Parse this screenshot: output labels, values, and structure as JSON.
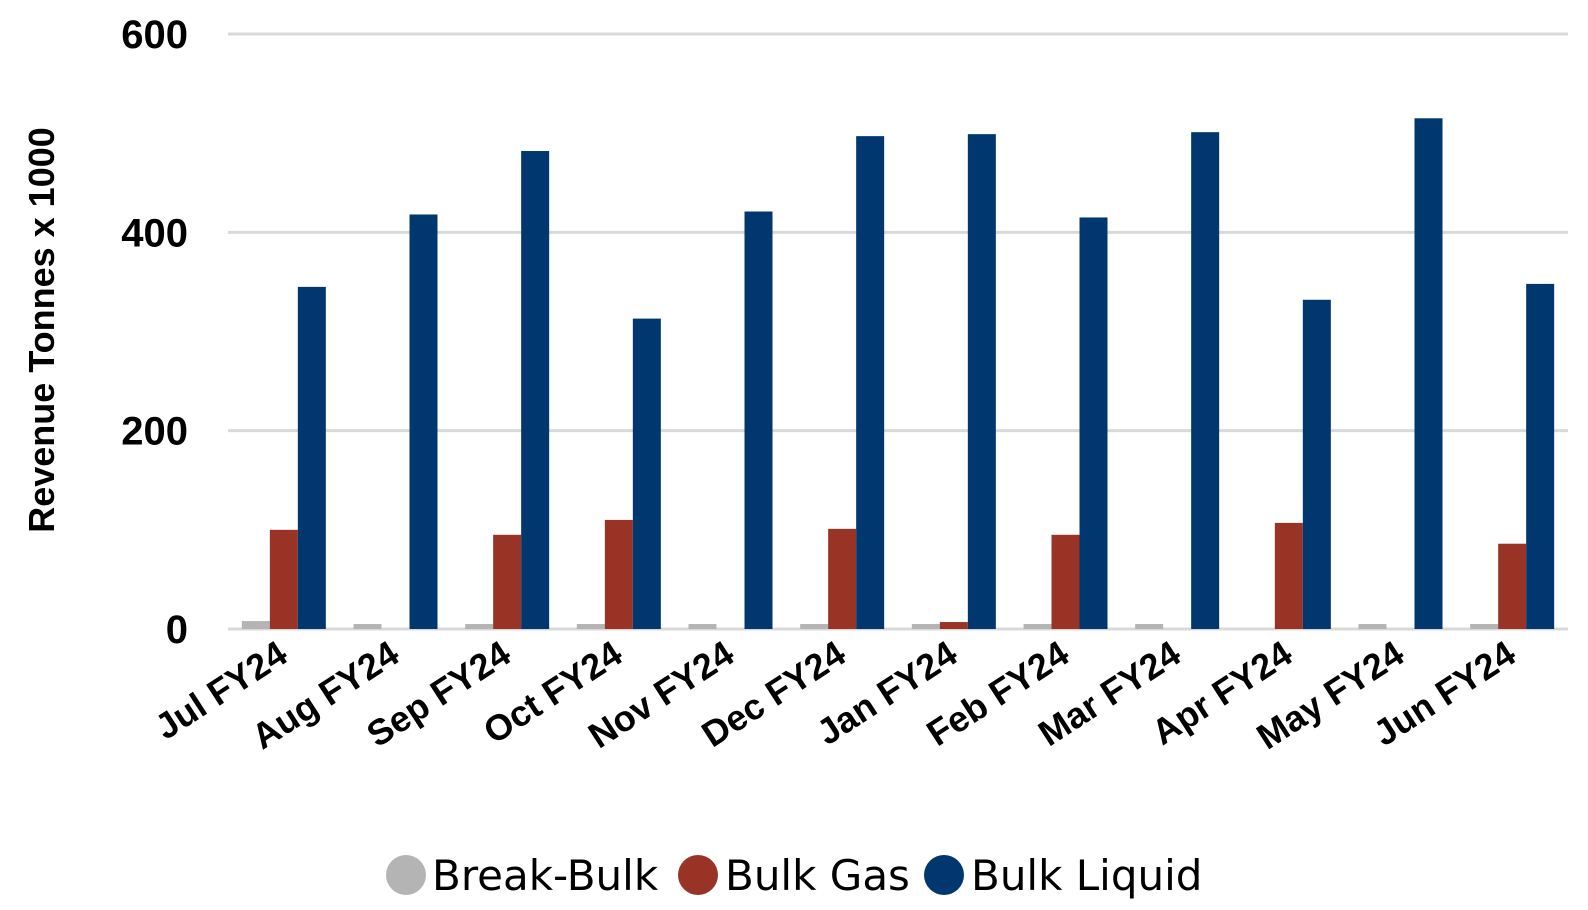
{
  "chart_data": {
    "type": "bar",
    "ylabel": "Revenue Tonnes x 1000",
    "xlabel": "",
    "ylim": [
      0,
      600
    ],
    "yticks": [
      0,
      200,
      400,
      600
    ],
    "grid": true,
    "legend_position": "bottom",
    "categories": [
      "Jul FY24",
      "Aug FY24",
      "Sep FY24",
      "Oct FY24",
      "Nov FY24",
      "Dec FY24",
      "Jan FY24",
      "Feb FY24",
      "Mar FY24",
      "Apr FY24",
      "May FY24",
      "Jun FY24"
    ],
    "series": [
      {
        "name": "Break-Bulk",
        "color": "#b4b4b4",
        "values": [
          8,
          5,
          5,
          5,
          5,
          5,
          5,
          5,
          5,
          0,
          5,
          5
        ]
      },
      {
        "name": "Bulk Gas",
        "color": "#993325",
        "values": [
          100,
          0,
          95,
          110,
          0,
          101,
          7,
          95,
          0,
          107,
          0,
          86
        ]
      },
      {
        "name": "Bulk Liquid",
        "color": "#00376e",
        "values": [
          345,
          418,
          482,
          313,
          421,
          497,
          499,
          415,
          501,
          332,
          515,
          348
        ]
      }
    ]
  }
}
